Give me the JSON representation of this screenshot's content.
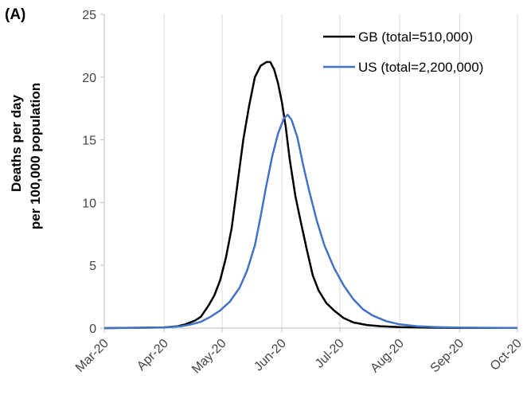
{
  "panel_label": "(A)",
  "chart_data": {
    "type": "line",
    "title": "",
    "xlabel": "",
    "ylabel": [
      "Deaths per day",
      "per 100,000 population"
    ],
    "ylim": [
      0,
      25
    ],
    "yticks": [
      0,
      5,
      10,
      15,
      20,
      25
    ],
    "xlim": [
      "2020-03-01",
      "2020-10-01"
    ],
    "xticks": [
      {
        "date": "2020-03-01",
        "label": "Mar-20"
      },
      {
        "date": "2020-04-01",
        "label": "Apr-20"
      },
      {
        "date": "2020-05-01",
        "label": "May-20"
      },
      {
        "date": "2020-06-01",
        "label": "Jun-20"
      },
      {
        "date": "2020-07-01",
        "label": "Jul-20"
      },
      {
        "date": "2020-08-01",
        "label": "Aug-20"
      },
      {
        "date": "2020-09-01",
        "label": "Sep-20"
      },
      {
        "date": "2020-10-01",
        "label": "Oct-20"
      }
    ],
    "grid": "vertical",
    "legend_position": "top-right",
    "series": [
      {
        "name": "GB (total=510,000)",
        "color": "#000000",
        "points": [
          [
            "2020-03-01",
            0.0
          ],
          [
            "2020-03-10",
            0.02
          ],
          [
            "2020-03-20",
            0.03
          ],
          [
            "2020-04-01",
            0.06
          ],
          [
            "2020-04-08",
            0.15
          ],
          [
            "2020-04-12",
            0.3
          ],
          [
            "2020-04-17",
            0.6
          ],
          [
            "2020-04-20",
            0.9
          ],
          [
            "2020-04-24",
            1.8
          ],
          [
            "2020-04-27",
            2.6
          ],
          [
            "2020-04-30",
            3.8
          ],
          [
            "2020-05-03",
            5.6
          ],
          [
            "2020-05-06",
            8.0
          ],
          [
            "2020-05-09",
            11.5
          ],
          [
            "2020-05-12",
            15.0
          ],
          [
            "2020-05-15",
            17.7
          ],
          [
            "2020-05-18",
            20.0
          ],
          [
            "2020-05-21",
            20.9
          ],
          [
            "2020-05-24",
            21.2
          ],
          [
            "2020-05-26",
            21.2
          ],
          [
            "2020-05-28",
            20.6
          ],
          [
            "2020-05-30",
            19.5
          ],
          [
            "2020-06-01",
            18.0
          ],
          [
            "2020-06-03",
            16.0
          ],
          [
            "2020-06-05",
            13.5
          ],
          [
            "2020-06-08",
            10.5
          ],
          [
            "2020-06-11",
            8.3
          ],
          [
            "2020-06-14",
            6.2
          ],
          [
            "2020-06-17",
            4.2
          ],
          [
            "2020-06-20",
            3.0
          ],
          [
            "2020-06-24",
            2.0
          ],
          [
            "2020-06-28",
            1.4
          ],
          [
            "2020-07-03",
            0.8
          ],
          [
            "2020-07-08",
            0.45
          ],
          [
            "2020-07-15",
            0.25
          ],
          [
            "2020-07-22",
            0.15
          ],
          [
            "2020-08-01",
            0.08
          ],
          [
            "2020-08-15",
            0.04
          ],
          [
            "2020-09-01",
            0.02
          ],
          [
            "2020-10-01",
            0.01
          ]
        ]
      },
      {
        "name": "US (total=2,200,000)",
        "color": "#4472C4",
        "points": [
          [
            "2020-03-01",
            0.0
          ],
          [
            "2020-03-15",
            0.02
          ],
          [
            "2020-04-01",
            0.05
          ],
          [
            "2020-04-10",
            0.15
          ],
          [
            "2020-04-15",
            0.3
          ],
          [
            "2020-04-20",
            0.5
          ],
          [
            "2020-04-25",
            0.9
          ],
          [
            "2020-04-30",
            1.4
          ],
          [
            "2020-05-05",
            2.1
          ],
          [
            "2020-05-10",
            3.2
          ],
          [
            "2020-05-14",
            4.6
          ],
          [
            "2020-05-18",
            6.6
          ],
          [
            "2020-05-21",
            8.9
          ],
          [
            "2020-05-24",
            11.4
          ],
          [
            "2020-05-27",
            13.7
          ],
          [
            "2020-05-30",
            15.5
          ],
          [
            "2020-06-02",
            16.7
          ],
          [
            "2020-06-04",
            17.0
          ],
          [
            "2020-06-06",
            16.6
          ],
          [
            "2020-06-09",
            15.2
          ],
          [
            "2020-06-12",
            13.0
          ],
          [
            "2020-06-15",
            11.0
          ],
          [
            "2020-06-19",
            8.6
          ],
          [
            "2020-06-23",
            6.6
          ],
          [
            "2020-06-28",
            4.8
          ],
          [
            "2020-07-03",
            3.4
          ],
          [
            "2020-07-08",
            2.3
          ],
          [
            "2020-07-13",
            1.5
          ],
          [
            "2020-07-18",
            1.0
          ],
          [
            "2020-07-25",
            0.55
          ],
          [
            "2020-08-01",
            0.3
          ],
          [
            "2020-08-10",
            0.15
          ],
          [
            "2020-08-20",
            0.08
          ],
          [
            "2020-09-01",
            0.04
          ],
          [
            "2020-10-01",
            0.01
          ]
        ]
      }
    ]
  }
}
